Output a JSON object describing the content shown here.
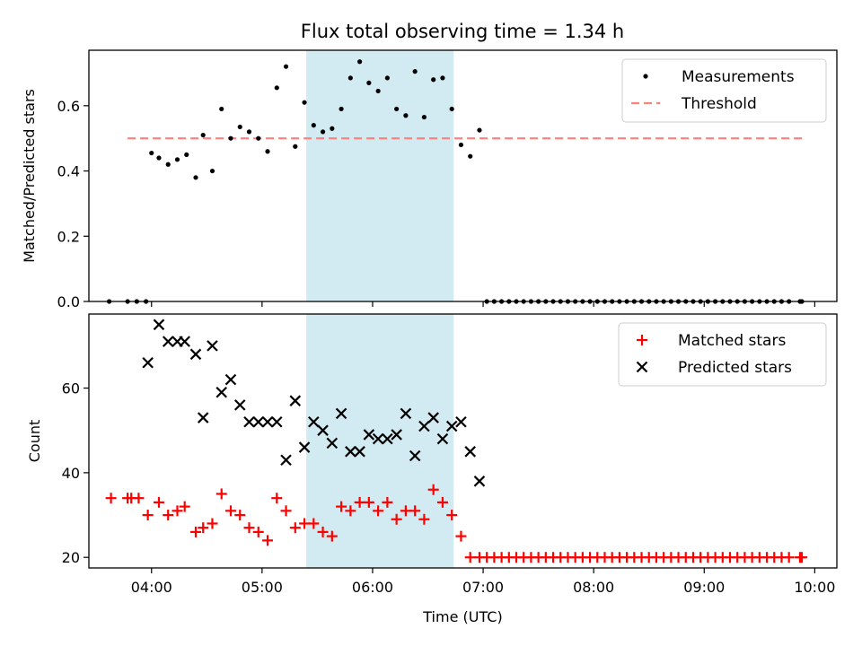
{
  "title": "Flux total observing time = 1.34 h",
  "colors": {
    "shade": "#add8e6",
    "threshold": "#ff7f7f",
    "matched": "#ff0000",
    "predicted": "#000000",
    "measurement": "#000000"
  },
  "chart_data": [
    {
      "type": "scatter",
      "ylabel": "Matched/Predicted stars",
      "ylim": [
        0,
        0.77
      ],
      "yticks": [
        0.0,
        0.2,
        0.4,
        0.6
      ],
      "shaded_region": [
        "05:24",
        "06:44"
      ],
      "threshold": {
        "y": 0.5,
        "x_range": [
          "03:47",
          "09:55"
        ]
      },
      "legend": {
        "position": "top-right",
        "labels": [
          "Measurements",
          "Threshold"
        ]
      },
      "series": [
        {
          "name": "Measurements",
          "marker": "dot",
          "x": [
            "03:37",
            "03:47",
            "03:52",
            "03:57",
            "04:00",
            "04:04",
            "04:09",
            "04:14",
            "04:19",
            "04:24",
            "04:28",
            "04:33",
            "04:38",
            "04:43",
            "04:48",
            "04:53",
            "04:58",
            "05:03",
            "05:08",
            "05:13",
            "05:18",
            "05:23",
            "05:28",
            "05:33",
            "05:38",
            "05:43",
            "05:48",
            "05:53",
            "05:58",
            "06:03",
            "06:08",
            "06:13",
            "06:18",
            "06:23",
            "06:28",
            "06:33",
            "06:38",
            "06:43",
            "06:48",
            "06:53",
            "06:58",
            "07:02",
            "07:06",
            "07:10",
            "07:14",
            "07:18",
            "07:22",
            "07:26",
            "07:30",
            "07:34",
            "07:38",
            "07:42",
            "07:46",
            "07:50",
            "07:54",
            "07:58",
            "08:02",
            "08:06",
            "08:10",
            "08:14",
            "08:18",
            "08:22",
            "08:26",
            "08:30",
            "08:34",
            "08:38",
            "08:42",
            "08:46",
            "08:50",
            "08:54",
            "08:58",
            "09:02",
            "09:06",
            "09:10",
            "09:14",
            "09:18",
            "09:22",
            "09:26",
            "09:30",
            "09:34",
            "09:38",
            "09:42",
            "09:46",
            "09:52",
            "09:53"
          ],
          "y": [
            0.0,
            0.0,
            0.0,
            0.0,
            0.455,
            0.44,
            0.42,
            0.435,
            0.45,
            0.38,
            0.51,
            0.4,
            0.59,
            0.5,
            0.535,
            0.52,
            0.5,
            0.46,
            0.655,
            0.72,
            0.475,
            0.61,
            0.54,
            0.52,
            0.53,
            0.59,
            0.685,
            0.735,
            0.67,
            0.645,
            0.685,
            0.59,
            0.57,
            0.705,
            0.565,
            0.68,
            0.685,
            0.59,
            0.48,
            0.445,
            0.525,
            0.0,
            0.0,
            0.0,
            0.0,
            0.0,
            0.0,
            0.0,
            0.0,
            0.0,
            0.0,
            0.0,
            0.0,
            0.0,
            0.0,
            0.0,
            0.0,
            0.0,
            0.0,
            0.0,
            0.0,
            0.0,
            0.0,
            0.0,
            0.0,
            0.0,
            0.0,
            0.0,
            0.0,
            0.0,
            0.0,
            0.0,
            0.0,
            0.0,
            0.0,
            0.0,
            0.0,
            0.0,
            0.0,
            0.0,
            0.0,
            0.0,
            0.0,
            0.0,
            0.0
          ]
        }
      ]
    },
    {
      "type": "scatter",
      "xlabel": "Time (UTC)",
      "ylabel": "Count",
      "ylim": [
        17.5,
        77.5
      ],
      "yticks": [
        20,
        40,
        60
      ],
      "xlim": [
        "03:26",
        "10:12"
      ],
      "xticks": [
        "04:00",
        "05:00",
        "06:00",
        "07:00",
        "08:00",
        "09:00",
        "10:00"
      ],
      "shaded_region": [
        "05:24",
        "06:44"
      ],
      "legend": {
        "position": "top-right",
        "labels": [
          "Matched stars",
          "Predicted stars"
        ]
      },
      "series": [
        {
          "name": "Matched stars",
          "marker": "plus",
          "x": [
            "03:38",
            "03:47",
            "03:49",
            "03:53",
            "03:58",
            "04:04",
            "04:09",
            "04:14",
            "04:18",
            "04:24",
            "04:28",
            "04:33",
            "04:38",
            "04:43",
            "04:48",
            "04:53",
            "04:58",
            "05:03",
            "05:08",
            "05:13",
            "05:18",
            "05:23",
            "05:28",
            "05:33",
            "05:38",
            "05:43",
            "05:48",
            "05:53",
            "05:58",
            "06:03",
            "06:08",
            "06:13",
            "06:18",
            "06:23",
            "06:28",
            "06:33",
            "06:38",
            "06:43",
            "06:48",
            "06:53",
            "06:58",
            "07:02",
            "07:06",
            "07:10",
            "07:14",
            "07:18",
            "07:22",
            "07:26",
            "07:30",
            "07:34",
            "07:38",
            "07:42",
            "07:46",
            "07:50",
            "07:54",
            "07:58",
            "08:02",
            "08:06",
            "08:10",
            "08:14",
            "08:18",
            "08:22",
            "08:26",
            "08:30",
            "08:34",
            "08:38",
            "08:42",
            "08:46",
            "08:50",
            "08:54",
            "08:58",
            "09:02",
            "09:06",
            "09:10",
            "09:14",
            "09:18",
            "09:22",
            "09:26",
            "09:30",
            "09:34",
            "09:38",
            "09:42",
            "09:46",
            "09:52",
            "09:53"
          ],
          "y": [
            34,
            34,
            34,
            34,
            30,
            33,
            30,
            31,
            32,
            26,
            27,
            28,
            35,
            31,
            30,
            27,
            26,
            24,
            34,
            31,
            27,
            28,
            28,
            26,
            25,
            32,
            31,
            33,
            33,
            31,
            33,
            29,
            31,
            31,
            29,
            36,
            33,
            30,
            25,
            20,
            20,
            20,
            20,
            20,
            20,
            20,
            20,
            20,
            20,
            20,
            20,
            20,
            20,
            20,
            20,
            20,
            20,
            20,
            20,
            20,
            20,
            20,
            20,
            20,
            20,
            20,
            20,
            20,
            20,
            20,
            20,
            20,
            20,
            20,
            20,
            20,
            20,
            20,
            20,
            20,
            20,
            20,
            20,
            20,
            20
          ]
        },
        {
          "name": "Predicted stars",
          "marker": "x",
          "x": [
            "03:58",
            "04:04",
            "04:09",
            "04:14",
            "04:18",
            "04:24",
            "04:28",
            "04:33",
            "04:38",
            "04:43",
            "04:48",
            "04:53",
            "04:58",
            "05:03",
            "05:08",
            "05:13",
            "05:18",
            "05:23",
            "05:28",
            "05:33",
            "05:38",
            "05:43",
            "05:48",
            "05:53",
            "05:58",
            "06:03",
            "06:08",
            "06:13",
            "06:18",
            "06:23",
            "06:28",
            "06:33",
            "06:38",
            "06:43",
            "06:48",
            "06:53",
            "06:58"
          ],
          "y": [
            66,
            75,
            71,
            71,
            71,
            68,
            53,
            70,
            59,
            62,
            56,
            52,
            52,
            52,
            52,
            43,
            57,
            46,
            52,
            50,
            47,
            54,
            45,
            45,
            49,
            48,
            48,
            49,
            54,
            44,
            51,
            53,
            48,
            51,
            52,
            45,
            38
          ]
        }
      ]
    }
  ]
}
